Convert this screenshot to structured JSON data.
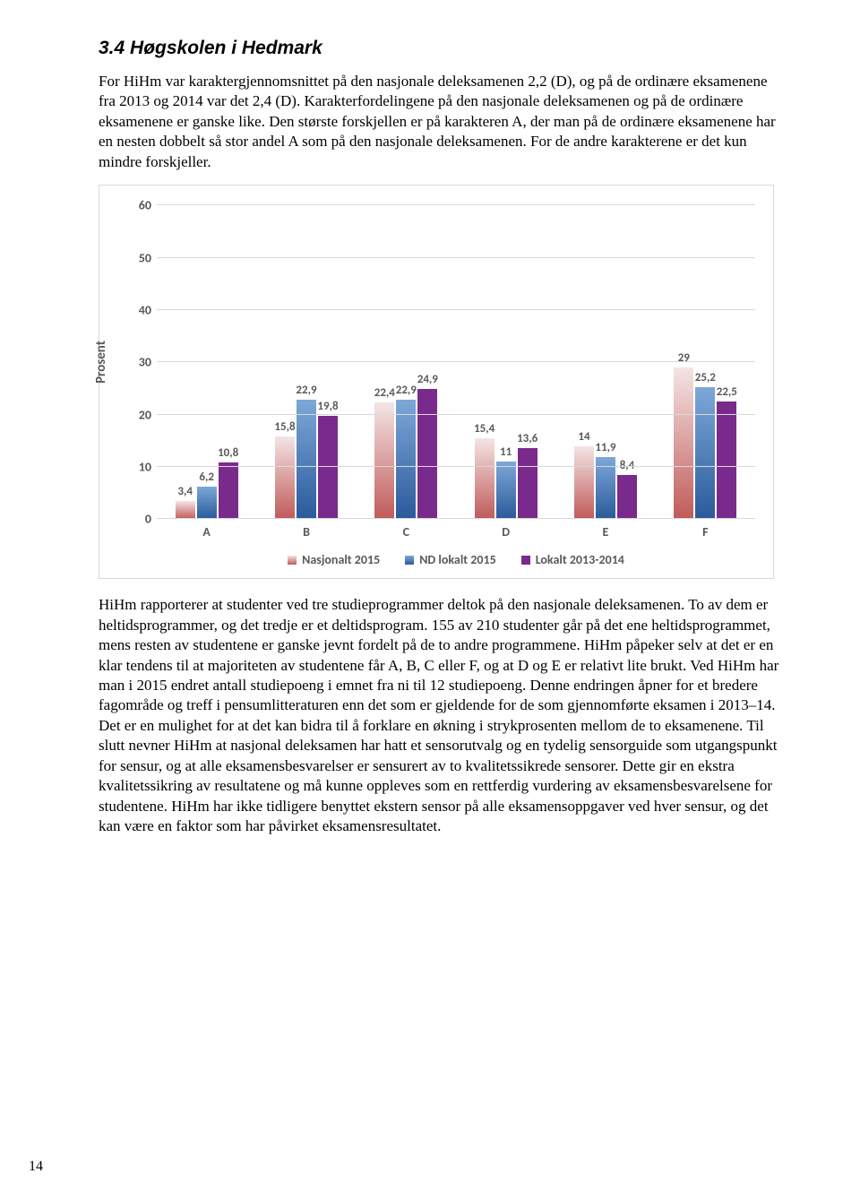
{
  "heading": "3.4  Høgskolen i Hedmark",
  "para1": "For HiHm var karaktergjennomsnittet på den nasjonale deleksamenen 2,2 (D), og på de ordinære eksamenene fra 2013 og 2014 var det 2,4 (D). Karakterfordelingene på den nasjonale deleksamenen og på de ordinære eksamenene er ganske like. Den største forskjellen er på karakteren A, der man på de ordinære eksamenene har en nesten dobbelt så stor andel A som på den nasjonale deleksamenen. For de andre karakterene er det kun mindre forskjeller.",
  "para2": "HiHm rapporterer at studenter ved tre studieprogrammer deltok på den nasjonale deleksamenen. To av dem er heltidsprogrammer, og det tredje er et deltidsprogram. 155 av 210 studenter går på det ene heltidsprogrammet, mens resten av studentene er ganske jevnt fordelt på de to andre programmene. HiHm påpeker selv at det er en klar tendens til at majoriteten av studentene får A, B, C eller F, og at D og E er relativt lite brukt. Ved HiHm har man i 2015 endret antall studiepoeng i emnet fra ni til 12 studiepoeng. Denne endringen åpner for et bredere fagområde og treff i pensumlitteraturen enn det som er gjeldende for de som gjennomførte eksamen i 2013–14. Det er en mulighet for at det kan bidra til å forklare en økning i strykprosenten mellom de to eksamenene. Til slutt nevner HiHm at nasjonal deleksamen har hatt et sensorutvalg og en tydelig sensorguide som utgangspunkt for sensur, og at alle eksamensbesvarelser er sensurert av to kvalitetssikrede sensorer. Dette gir en ekstra kvalitetssikring av resultatene og må kunne oppleves som en rettferdig vurdering av eksamensbesvarelsene for studentene. HiHm har ikke tidligere benyttet ekstern sensor på alle eksamensoppgaver ved hver sensur, og det kan være en faktor som har påvirket eksamensresultatet.",
  "page_number": "14",
  "chart": {
    "type": "bar",
    "y_axis_label": "Prosent",
    "ylim": [
      0,
      60
    ],
    "ytick_step": 10,
    "grid_color": "#d9d9d9",
    "label_color": "#595959",
    "categories": [
      "A",
      "B",
      "C",
      "D",
      "E",
      "F"
    ],
    "series": [
      {
        "name": "Nasjonalt 2015",
        "color_top": "#f4e5e5",
        "color_bottom": "#c15a5a",
        "values": [
          3.4,
          15.8,
          22.4,
          15.4,
          14,
          29
        ],
        "labels": [
          "3,4",
          "15,8",
          "22,4",
          "15,4",
          "14",
          "29"
        ]
      },
      {
        "name": "ND lokalt 2015",
        "color_top": "#7da8d8",
        "color_bottom": "#2a5a9b",
        "values": [
          6.2,
          22.9,
          22.9,
          11,
          11.9,
          25.2
        ],
        "labels": [
          "6,2",
          "22,9",
          "22,9",
          "11",
          "11,9",
          "25,2"
        ]
      },
      {
        "name": "Lokalt 2013-2014",
        "color_top": "#7a2a8c",
        "color_bottom": "#7a2a8c",
        "values": [
          10.8,
          19.8,
          24.9,
          13.6,
          8.4,
          22.5
        ],
        "labels": [
          "10,8",
          "19,8",
          "24,9",
          "13,6",
          "8,4",
          "22,5"
        ]
      }
    ]
  }
}
